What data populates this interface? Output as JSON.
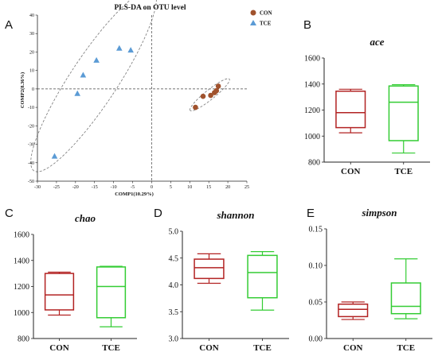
{
  "figure": {
    "panels": [
      "A",
      "B",
      "C",
      "D",
      "E"
    ]
  },
  "chart_data": [
    {
      "id": "A",
      "type": "scatter",
      "title": "PLS-DA on OTU level",
      "xlabel": "COMP1(10.29%)",
      "ylabel": "COMP2(8.36%)",
      "xlim": [
        -30,
        25
      ],
      "ylim": [
        -50,
        40
      ],
      "xticks": [
        "-30",
        "-25",
        "-20",
        "-15",
        "-10",
        "-5",
        "0",
        "5",
        "10",
        "15",
        "20",
        "25"
      ],
      "yticks": [
        "40",
        "30",
        "20",
        "10",
        "0",
        "-10",
        "-20",
        "-30",
        "-40",
        "-50"
      ],
      "legend_position": "top-right",
      "series": [
        {
          "name": "CON",
          "color": "#a0522d",
          "marker": "circle",
          "x": [
            11.5,
            13.5,
            15.5,
            16.5,
            17.0,
            17.5
          ],
          "y": [
            -10,
            -4,
            -3.5,
            -2,
            -1,
            1.5
          ]
        },
        {
          "name": "TCE",
          "color": "#5b9bd5",
          "marker": "triangle",
          "x": [
            -25.5,
            -19.5,
            -18,
            -14.5,
            -8.5,
            -5.5
          ],
          "y": [
            -36.5,
            -2.5,
            7.5,
            15.5,
            22,
            21
          ]
        }
      ]
    },
    {
      "id": "B",
      "type": "box",
      "title": "ace",
      "ylim": [
        800,
        1600
      ],
      "yticks": [
        "800",
        "1000",
        "1200",
        "1400",
        "1600"
      ],
      "categories": [
        "CON",
        "TCE"
      ],
      "boxes": [
        {
          "min": 1025,
          "q1": 1065,
          "median": 1180,
          "q3": 1345,
          "max": 1360,
          "color": "#b22222"
        },
        {
          "min": 870,
          "q1": 965,
          "median": 1260,
          "q3": 1385,
          "max": 1395,
          "color": "#33cc33"
        }
      ]
    },
    {
      "id": "C",
      "type": "box",
      "title": "chao",
      "ylim": [
        800,
        1600
      ],
      "yticks": [
        "800",
        "1000",
        "1200",
        "1400",
        "1600"
      ],
      "categories": [
        "CON",
        "TCE"
      ],
      "boxes": [
        {
          "min": 980,
          "q1": 1020,
          "median": 1135,
          "q3": 1300,
          "max": 1310,
          "color": "#b22222"
        },
        {
          "min": 890,
          "q1": 960,
          "median": 1200,
          "q3": 1350,
          "max": 1355,
          "color": "#33cc33"
        }
      ]
    },
    {
      "id": "D",
      "type": "box",
      "title": "shannon",
      "ylim": [
        3.0,
        5.0
      ],
      "yticks": [
        "3.0",
        "3.5",
        "4.0",
        "4.5",
        "5.0"
      ],
      "categories": [
        "CON",
        "TCE"
      ],
      "boxes": [
        {
          "min": 4.03,
          "q1": 4.12,
          "median": 4.32,
          "q3": 4.48,
          "max": 4.58,
          "color": "#b22222"
        },
        {
          "min": 3.53,
          "q1": 3.76,
          "median": 4.23,
          "q3": 4.55,
          "max": 4.62,
          "color": "#33cc33"
        }
      ]
    },
    {
      "id": "E",
      "type": "box",
      "title": "simpson",
      "ylim": [
        0.0,
        0.15
      ],
      "yticks": [
        "0.00",
        "0.05",
        "0.10",
        "0.15"
      ],
      "categories": [
        "CON",
        "TCE"
      ],
      "boxes": [
        {
          "min": 0.026,
          "q1": 0.03,
          "median": 0.04,
          "q3": 0.047,
          "max": 0.05,
          "color": "#b22222"
        },
        {
          "min": 0.027,
          "q1": 0.034,
          "median": 0.044,
          "q3": 0.076,
          "max": 0.109,
          "color": "#33cc33"
        }
      ]
    }
  ]
}
